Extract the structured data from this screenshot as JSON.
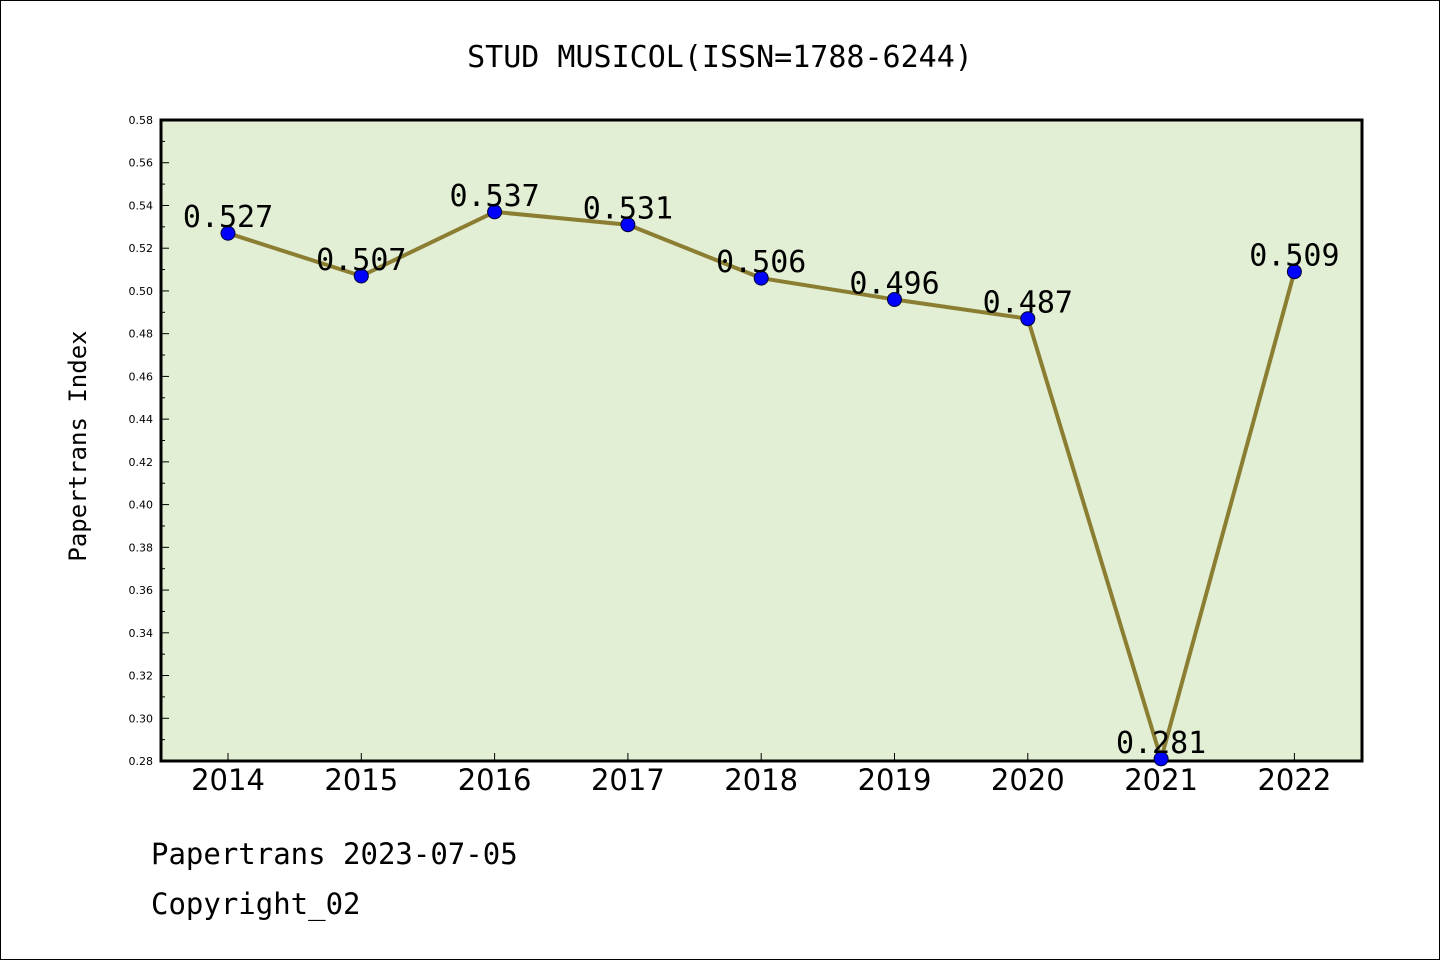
{
  "chart_data": {
    "type": "line",
    "title": "STUD MUSICOL(ISSN=1788-6244)",
    "ylabel": "Papertrans Index",
    "xlabel": "",
    "categories": [
      "2014",
      "2015",
      "2016",
      "2017",
      "2018",
      "2019",
      "2020",
      "2021",
      "2022"
    ],
    "series": [
      {
        "values": [
          0.527,
          0.507,
          0.537,
          0.531,
          0.506,
          0.496,
          0.487,
          0.281,
          0.509
        ],
        "labels": [
          "0.527",
          "0.507",
          "0.537",
          "0.531",
          "0.506",
          "0.496",
          "0.487",
          "0.281",
          "0.509"
        ]
      }
    ],
    "ylim": [
      0.28,
      0.58
    ],
    "yticks": [
      "0.28",
      "0.30",
      "0.32",
      "0.34",
      "0.36",
      "0.38",
      "0.40",
      "0.42",
      "0.44",
      "0.46",
      "0.48",
      "0.50",
      "0.52",
      "0.54",
      "0.56",
      "0.58"
    ],
    "grid": false,
    "colors": {
      "plot_background": "#e2efd4",
      "line": "#8b7e33",
      "marker": "#0000ff",
      "frame": "#000000"
    }
  },
  "footer": {
    "line1": "Papertrans 2023-07-05",
    "line2": "Copyright_02"
  }
}
